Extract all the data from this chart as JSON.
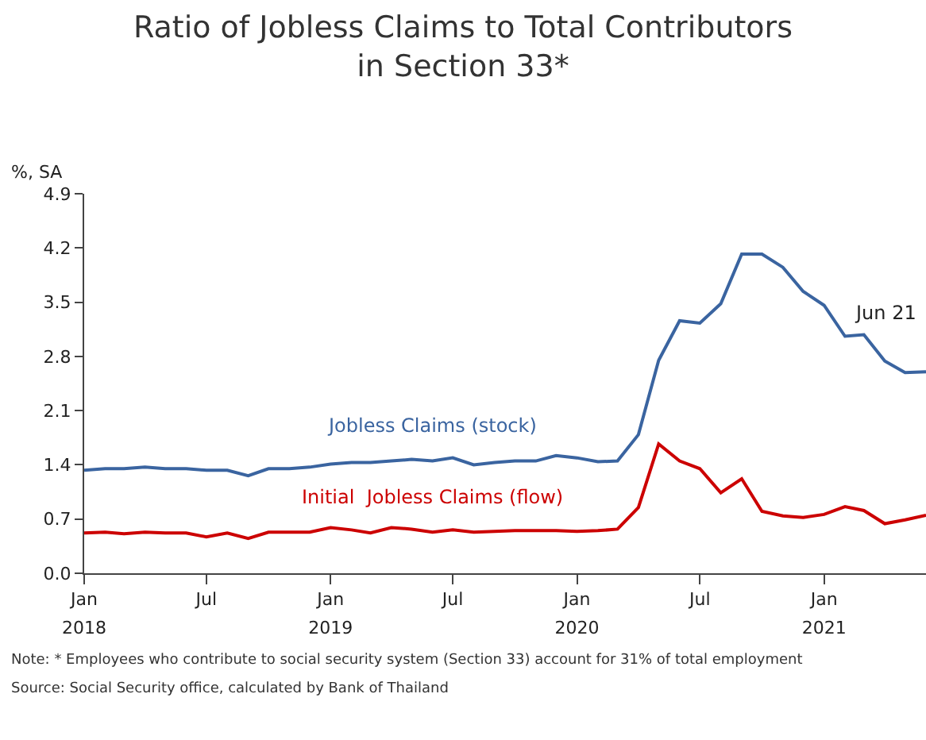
{
  "chart_data": {
    "type": "line",
    "title": "Ratio of Jobless Claims to Total Contributors\nin Section 33*",
    "ylabel": "%, SA",
    "x": [
      "2018-01",
      "2018-02",
      "2018-03",
      "2018-04",
      "2018-05",
      "2018-06",
      "2018-07",
      "2018-08",
      "2018-09",
      "2018-10",
      "2018-11",
      "2018-12",
      "2019-01",
      "2019-02",
      "2019-03",
      "2019-04",
      "2019-05",
      "2019-06",
      "2019-07",
      "2019-08",
      "2019-09",
      "2019-10",
      "2019-11",
      "2019-12",
      "2020-01",
      "2020-02",
      "2020-03",
      "2020-04",
      "2020-05",
      "2020-06",
      "2020-07",
      "2020-08",
      "2020-09",
      "2020-10",
      "2020-11",
      "2020-12",
      "2021-01",
      "2021-02",
      "2021-03",
      "2021-04",
      "2021-05",
      "2021-06"
    ],
    "series": [
      {
        "name": "Jobless Claims (stock)",
        "color": "#3a64a0",
        "values": [
          1.33,
          1.35,
          1.35,
          1.37,
          1.35,
          1.35,
          1.33,
          1.33,
          1.26,
          1.35,
          1.35,
          1.37,
          1.41,
          1.43,
          1.43,
          1.45,
          1.47,
          1.45,
          1.49,
          1.4,
          1.43,
          1.45,
          1.45,
          1.52,
          1.49,
          1.44,
          1.45,
          1.79,
          2.75,
          3.26,
          3.23,
          3.48,
          4.12,
          4.12,
          3.95,
          3.64,
          3.46,
          3.06,
          3.08,
          2.74,
          2.59,
          2.6
        ]
      },
      {
        "name": "Initial  Jobless Claims (flow)",
        "color": "#cc0000",
        "values": [
          0.52,
          0.53,
          0.51,
          0.53,
          0.52,
          0.52,
          0.47,
          0.52,
          0.45,
          0.53,
          0.53,
          0.53,
          0.59,
          0.56,
          0.52,
          0.59,
          0.57,
          0.53,
          0.56,
          0.53,
          0.54,
          0.55,
          0.55,
          0.55,
          0.54,
          0.55,
          0.57,
          0.85,
          1.67,
          1.45,
          1.35,
          1.04,
          1.22,
          0.8,
          0.74,
          0.72,
          0.76,
          0.86,
          0.81,
          0.64,
          0.69,
          0.75
        ]
      }
    ],
    "xlim": [
      "2018-01",
      "2021-06"
    ],
    "xticks": [
      {
        "value": "2018-01",
        "label": "Jan"
      },
      {
        "value": "2018-07",
        "label": "Jul"
      },
      {
        "value": "2019-01",
        "label": "Jan"
      },
      {
        "value": "2019-07",
        "label": "Jul"
      },
      {
        "value": "2020-01",
        "label": "Jan"
      },
      {
        "value": "2020-07",
        "label": "Jul"
      },
      {
        "value": "2021-01",
        "label": "Jan"
      }
    ],
    "x2lim": [
      "2018-01",
      "2021-06"
    ],
    "x2ticks": [
      {
        "value": "2018-01",
        "label": "2018"
      },
      {
        "value": "2019-01",
        "label": "2019"
      },
      {
        "value": "2020-01",
        "label": "2020"
      },
      {
        "value": "2021-01",
        "label": "2021"
      }
    ],
    "ylim": [
      0,
      4.9
    ],
    "yticks": [
      {
        "value": 0,
        "label": "0.0"
      },
      0.7,
      1.4,
      2.1,
      2.8,
      3.5,
      4.2,
      4.9
    ],
    "annotations": [
      {
        "text": "Jun 21",
        "x": "2021-06",
        "y": 2.6
      },
      "Note: * Employees who contribute to social security system (Section 33) account for 31% of total employment",
      "Source: Social Security office, calculated by Bank of Thailand"
    ],
    "legend": false,
    "grid": false,
    "marker": "none",
    "line_style": "solid"
  }
}
